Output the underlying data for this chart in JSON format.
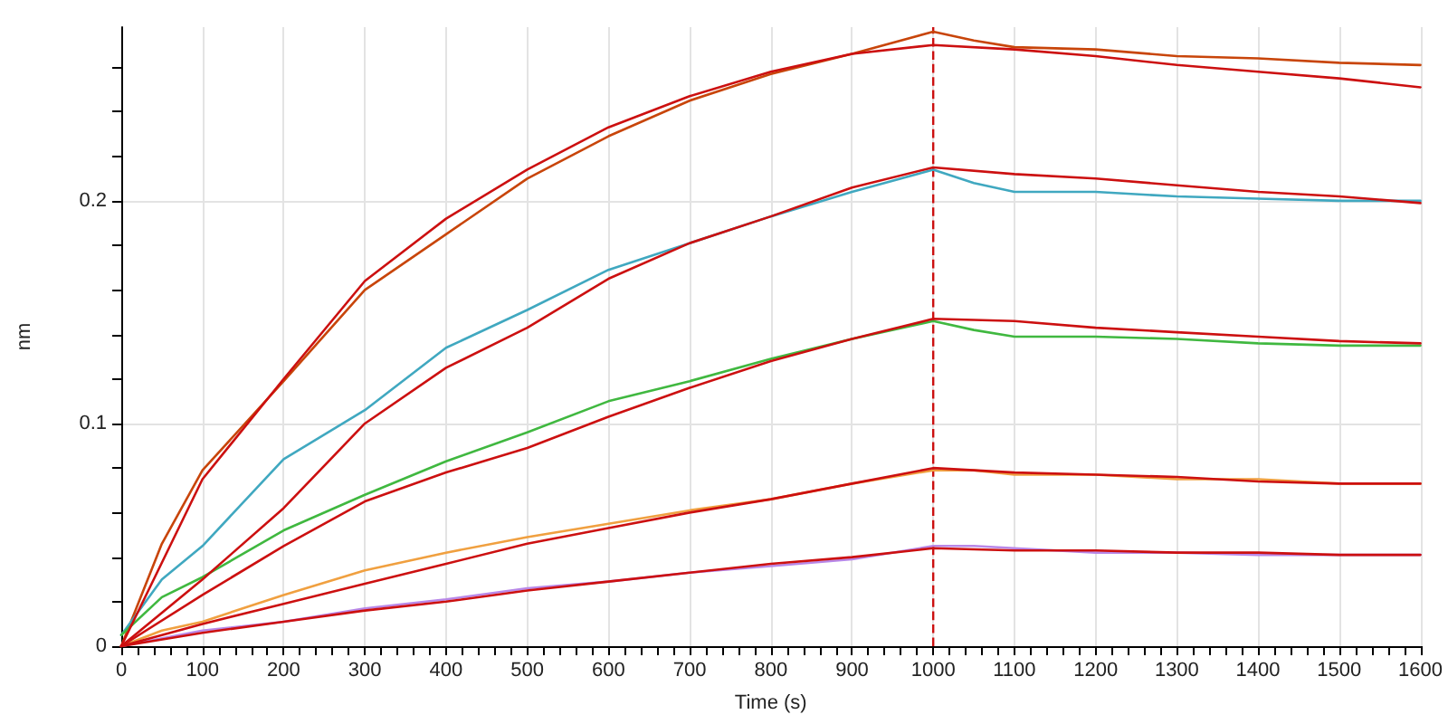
{
  "chart_data": {
    "type": "line",
    "xlabel": "Time (s)",
    "ylabel": "nm",
    "xlim": [
      0,
      1600
    ],
    "ylim": [
      0,
      0.278
    ],
    "xticks": [
      0,
      {
        "value": 20,
        "label": null
      },
      {
        "value": 40,
        "label": null
      },
      {
        "value": 60,
        "label": null
      },
      {
        "value": 80,
        "label": null
      },
      100,
      {
        "value": 120,
        "label": null
      },
      {
        "value": 140,
        "label": null
      },
      {
        "value": 160,
        "label": null
      },
      {
        "value": 180,
        "label": null
      },
      200,
      {
        "value": 220,
        "label": null
      },
      {
        "value": 240,
        "label": null
      },
      {
        "value": 260,
        "label": null
      },
      {
        "value": 280,
        "label": null
      },
      300,
      {
        "value": 320,
        "label": null
      },
      {
        "value": 340,
        "label": null
      },
      {
        "value": 360,
        "label": null
      },
      {
        "value": 380,
        "label": null
      },
      400,
      {
        "value": 420,
        "label": null
      },
      {
        "value": 440,
        "label": null
      },
      {
        "value": 460,
        "label": null
      },
      {
        "value": 480,
        "label": null
      },
      500,
      {
        "value": 520,
        "label": null
      },
      {
        "value": 540,
        "label": null
      },
      {
        "value": 560,
        "label": null
      },
      {
        "value": 580,
        "label": null
      },
      600,
      {
        "value": 620,
        "label": null
      },
      {
        "value": 640,
        "label": null
      },
      {
        "value": 660,
        "label": null
      },
      {
        "value": 680,
        "label": null
      },
      700,
      {
        "value": 720,
        "label": null
      },
      {
        "value": 740,
        "label": null
      },
      {
        "value": 760,
        "label": null
      },
      {
        "value": 780,
        "label": null
      },
      800,
      {
        "value": 820,
        "label": null
      },
      {
        "value": 840,
        "label": null
      },
      {
        "value": 860,
        "label": null
      },
      {
        "value": 880,
        "label": null
      },
      900,
      {
        "value": 920,
        "label": null
      },
      {
        "value": 940,
        "label": null
      },
      {
        "value": 960,
        "label": null
      },
      {
        "value": 980,
        "label": null
      },
      1000,
      {
        "value": 1020,
        "label": null
      },
      {
        "value": 1040,
        "label": null
      },
      {
        "value": 1060,
        "label": null
      },
      {
        "value": 1080,
        "label": null
      },
      1100,
      {
        "value": 1120,
        "label": null
      },
      {
        "value": 1140,
        "label": null
      },
      {
        "value": 1160,
        "label": null
      },
      {
        "value": 1180,
        "label": null
      },
      1200,
      {
        "value": 1220,
        "label": null
      },
      {
        "value": 1240,
        "label": null
      },
      {
        "value": 1260,
        "label": null
      },
      {
        "value": 1280,
        "label": null
      },
      1300,
      {
        "value": 1320,
        "label": null
      },
      {
        "value": 1340,
        "label": null
      },
      {
        "value": 1360,
        "label": null
      },
      {
        "value": 1380,
        "label": null
      },
      1400,
      {
        "value": 1420,
        "label": null
      },
      {
        "value": 1440,
        "label": null
      },
      {
        "value": 1460,
        "label": null
      },
      {
        "value": 1480,
        "label": null
      },
      1500,
      {
        "value": 1520,
        "label": null
      },
      {
        "value": 1540,
        "label": null
      },
      {
        "value": 1560,
        "label": null
      },
      {
        "value": 1580,
        "label": null
      },
      1600
    ],
    "yticks": [
      0,
      {
        "value": 0.02,
        "label": null
      },
      {
        "value": 0.04,
        "label": null
      },
      {
        "value": 0.06,
        "label": null
      },
      {
        "value": 0.08,
        "label": null
      },
      0.1,
      {
        "value": 0.12,
        "label": null
      },
      {
        "value": 0.14,
        "label": null
      },
      {
        "value": 0.16,
        "label": null
      },
      {
        "value": 0.18,
        "label": null
      },
      0.2,
      {
        "value": 0.22,
        "label": null
      },
      {
        "value": 0.24,
        "label": null
      },
      {
        "value": 0.26,
        "label": null
      }
    ],
    "grid": true,
    "marker": "none",
    "line_style": "solid",
    "ref_lines": [
      {
        "axis": "x",
        "value": 1000,
        "color": "#cc1010",
        "line_style": "dashed"
      }
    ],
    "series": [
      {
        "color": "#c8450a",
        "x": [
          0,
          50,
          100,
          200,
          300,
          400,
          500,
          600,
          700,
          800,
          900,
          1000,
          1050,
          1100,
          1200,
          1300,
          1400,
          1500,
          1600
        ],
        "values": [
          0,
          0.046,
          0.079,
          0.119,
          0.16,
          0.185,
          0.21,
          0.229,
          0.245,
          0.257,
          0.266,
          0.276,
          0.272,
          0.269,
          0.268,
          0.265,
          0.264,
          0.262,
          0.261
        ]
      },
      {
        "color": "#40a8c0",
        "x": [
          0,
          50,
          100,
          200,
          300,
          400,
          500,
          600,
          700,
          800,
          900,
          1000,
          1050,
          1100,
          1200,
          1300,
          1400,
          1500,
          1600
        ],
        "values": [
          0.005,
          0.03,
          0.045,
          0.084,
          0.106,
          0.134,
          0.151,
          0.169,
          0.181,
          0.193,
          0.204,
          0.214,
          0.208,
          0.204,
          0.204,
          0.202,
          0.201,
          0.2,
          0.2
        ]
      },
      {
        "color": "#40b840",
        "x": [
          0,
          50,
          100,
          200,
          300,
          400,
          500,
          600,
          700,
          800,
          900,
          1000,
          1050,
          1100,
          1200,
          1300,
          1400,
          1500,
          1600
        ],
        "values": [
          0.005,
          0.022,
          0.031,
          0.052,
          0.068,
          0.083,
          0.096,
          0.11,
          0.119,
          0.129,
          0.138,
          0.146,
          0.142,
          0.139,
          0.139,
          0.138,
          0.136,
          0.135,
          0.135
        ]
      },
      {
        "color": "#f0a040",
        "x": [
          0,
          50,
          100,
          200,
          300,
          400,
          500,
          600,
          700,
          800,
          900,
          1000,
          1050,
          1100,
          1200,
          1300,
          1400,
          1500,
          1600
        ],
        "values": [
          0,
          0.007,
          0.011,
          0.023,
          0.034,
          0.042,
          0.049,
          0.055,
          0.061,
          0.066,
          0.073,
          0.079,
          0.079,
          0.077,
          0.077,
          0.075,
          0.075,
          0.073,
          0.073
        ]
      },
      {
        "color": "#b888e8",
        "x": [
          0,
          100,
          200,
          300,
          400,
          500,
          600,
          700,
          800,
          900,
          1000,
          1050,
          1100,
          1200,
          1300,
          1400,
          1500,
          1600
        ],
        "values": [
          0,
          0.007,
          0.011,
          0.017,
          0.021,
          0.026,
          0.029,
          0.033,
          0.036,
          0.039,
          0.045,
          0.045,
          0.044,
          0.042,
          0.042,
          0.041,
          0.041,
          0.041
        ]
      },
      {
        "color": "#cc1010",
        "x": [
          0,
          100,
          200,
          300,
          400,
          500,
          600,
          700,
          800,
          900,
          1000,
          1100,
          1200,
          1300,
          1400,
          1500,
          1600
        ],
        "values": [
          0,
          0.075,
          0.12,
          0.164,
          0.192,
          0.214,
          0.233,
          0.247,
          0.258,
          0.266,
          0.27,
          0.268,
          0.265,
          0.261,
          0.258,
          0.255,
          0.251
        ]
      },
      {
        "color": "#cc1010",
        "x": [
          0,
          100,
          200,
          300,
          400,
          500,
          600,
          700,
          800,
          900,
          1000,
          1100,
          1200,
          1300,
          1400,
          1500,
          1600
        ],
        "values": [
          0,
          0.03,
          0.062,
          0.1,
          0.125,
          0.143,
          0.165,
          0.181,
          0.193,
          0.206,
          0.215,
          0.212,
          0.21,
          0.207,
          0.204,
          0.202,
          0.199
        ]
      },
      {
        "color": "#cc1010",
        "x": [
          0,
          100,
          200,
          300,
          400,
          500,
          600,
          700,
          800,
          900,
          1000,
          1100,
          1200,
          1300,
          1400,
          1500,
          1600
        ],
        "values": [
          0,
          0.023,
          0.045,
          0.065,
          0.078,
          0.089,
          0.103,
          0.116,
          0.128,
          0.138,
          0.147,
          0.146,
          0.143,
          0.141,
          0.139,
          0.137,
          0.136
        ]
      },
      {
        "color": "#cc1010",
        "x": [
          0,
          100,
          200,
          300,
          400,
          500,
          600,
          700,
          800,
          900,
          1000,
          1100,
          1200,
          1300,
          1400,
          1500,
          1600
        ],
        "values": [
          0,
          0.01,
          0.019,
          0.028,
          0.037,
          0.046,
          0.053,
          0.06,
          0.066,
          0.073,
          0.08,
          0.078,
          0.077,
          0.076,
          0.074,
          0.073,
          0.073
        ]
      },
      {
        "color": "#cc1010",
        "x": [
          0,
          100,
          200,
          300,
          400,
          500,
          600,
          700,
          800,
          900,
          1000,
          1100,
          1200,
          1300,
          1400,
          1500,
          1600
        ],
        "values": [
          0,
          0.006,
          0.011,
          0.016,
          0.02,
          0.025,
          0.029,
          0.033,
          0.037,
          0.04,
          0.044,
          0.043,
          0.043,
          0.042,
          0.042,
          0.041,
          0.041
        ]
      }
    ]
  }
}
